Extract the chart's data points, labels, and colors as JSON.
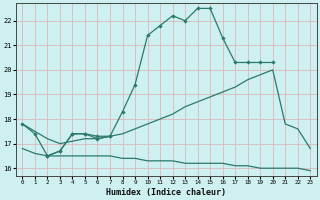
{
  "title": "",
  "xlabel": "Humidex (Indice chaleur)",
  "bg_color": "#cff0f0",
  "grid_color": "#ddb8b8",
  "line_color": "#2a7a6a",
  "xlim": [
    -0.5,
    23.5
  ],
  "ylim": [
    15.7,
    22.7
  ],
  "yticks": [
    16,
    17,
    18,
    19,
    20,
    21,
    22
  ],
  "xticks": [
    0,
    1,
    2,
    3,
    4,
    5,
    6,
    7,
    8,
    9,
    10,
    11,
    12,
    13,
    14,
    15,
    16,
    17,
    18,
    19,
    20,
    21,
    22,
    23
  ],
  "line1_x": [
    0,
    1,
    2,
    3,
    4,
    5,
    6,
    7,
    8,
    9,
    10,
    11,
    12,
    13,
    14,
    15,
    16,
    17,
    18,
    19,
    20
  ],
  "line1_y": [
    17.8,
    17.4,
    16.5,
    16.7,
    17.4,
    17.4,
    17.2,
    17.3,
    18.3,
    19.4,
    21.4,
    21.8,
    22.2,
    22.0,
    22.5,
    22.5,
    21.3,
    20.3,
    20.3,
    20.3,
    20.3
  ],
  "line2_x": [
    0,
    1,
    2,
    3,
    4,
    5,
    6,
    7,
    8,
    9,
    10,
    11,
    12,
    13,
    14,
    15,
    16,
    17,
    18,
    19,
    20,
    21,
    22,
    23
  ],
  "line2_y": [
    17.8,
    17.5,
    17.2,
    17.0,
    17.1,
    17.2,
    17.2,
    17.3,
    17.4,
    17.6,
    17.8,
    18.0,
    18.2,
    18.5,
    18.7,
    18.9,
    19.1,
    19.3,
    19.6,
    19.8,
    20.0,
    17.8,
    17.6,
    16.8
  ],
  "line3_x": [
    0,
    1,
    2,
    3,
    4,
    5,
    6,
    7,
    8,
    9,
    10,
    11,
    12,
    13,
    14,
    15,
    16,
    17,
    18,
    19,
    20,
    21,
    22,
    23
  ],
  "line3_y": [
    16.8,
    16.6,
    16.5,
    16.5,
    16.5,
    16.5,
    16.5,
    16.5,
    16.4,
    16.4,
    16.3,
    16.3,
    16.3,
    16.2,
    16.2,
    16.2,
    16.2,
    16.1,
    16.1,
    16.0,
    16.0,
    16.0,
    16.0,
    15.9
  ],
  "line4_x": [
    2,
    3,
    4,
    5,
    6,
    7
  ],
  "line4_y": [
    16.5,
    16.7,
    17.4,
    17.4,
    17.3,
    17.3
  ]
}
